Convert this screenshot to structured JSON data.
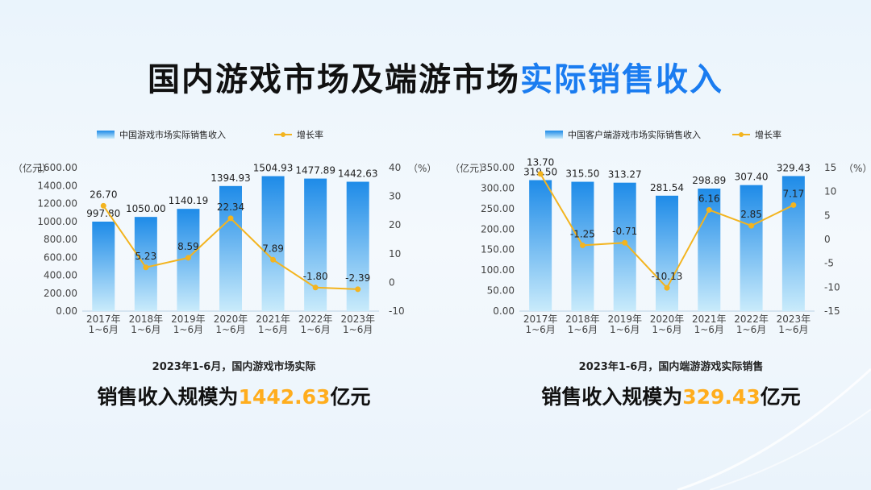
{
  "title": {
    "part1": "国内游戏市场及端游市场",
    "part2": "实际销售收入"
  },
  "colors": {
    "bar_top": "#1e8be8",
    "bar_bottom": "#c9ebfb",
    "line": "#f3b41f",
    "accent": "#1a7cf0",
    "highlight": "#ffad1d"
  },
  "chart_data": [
    {
      "type": "bar",
      "categories": [
        "2017年\n1~6月",
        "2018年\n1~6月",
        "2019年\n1~6月",
        "2020年\n1~6月",
        "2021年\n1~6月",
        "2022年\n1~6月",
        "2023年\n1~6月"
      ],
      "y_unit": "（亿元）",
      "y2_unit": "（%）",
      "ylim": [
        0,
        1600
      ],
      "yticks": [
        "0.00",
        "200.00",
        "400.00",
        "600.00",
        "800.00",
        "1000.00",
        "1200.00",
        "1400.00",
        "1600.00"
      ],
      "y2lim": [
        -10,
        40
      ],
      "y2ticks": [
        "-10",
        "0",
        "10",
        "20",
        "30",
        "40"
      ],
      "series": [
        {
          "name": "中国游戏市场实际销售收入",
          "type": "bar",
          "values": [
            997.8,
            1050.0,
            1140.19,
            1394.93,
            1504.93,
            1477.89,
            1442.63
          ],
          "labels": [
            "997.80",
            "1050.00",
            "1140.19",
            "1394.93",
            "1504.93",
            "1477.89",
            "1442.63"
          ]
        },
        {
          "name": "增长率",
          "type": "line",
          "axis": "right",
          "values": [
            26.7,
            5.23,
            8.59,
            22.34,
            7.89,
            -1.8,
            -2.39
          ],
          "labels": [
            "26.70",
            "5.23",
            "8.59",
            "22.34",
            "7.89",
            "-1.80",
            "-2.39"
          ]
        }
      ],
      "legend": "top",
      "grid": false
    },
    {
      "type": "bar",
      "categories": [
        "2017年\n1~6月",
        "2018年\n1~6月",
        "2019年\n1~6月",
        "2020年\n1~6月",
        "2021年\n1~6月",
        "2022年\n1~6月",
        "2023年\n1~6月"
      ],
      "y_unit": "（亿元）",
      "y2_unit": "（%）",
      "ylim": [
        0,
        350
      ],
      "yticks": [
        "0.00",
        "50.00",
        "100.00",
        "150.00",
        "200.00",
        "250.00",
        "300.00",
        "350.00"
      ],
      "y2lim": [
        -15,
        15
      ],
      "y2ticks": [
        "-15",
        "-10",
        "-5",
        "0",
        "5",
        "10",
        "15"
      ],
      "series": [
        {
          "name": "中国客户端游戏市场实际销售收入",
          "type": "bar",
          "values": [
            319.5,
            315.5,
            313.27,
            281.54,
            298.89,
            307.4,
            329.43
          ],
          "labels": [
            "319.50",
            "315.50",
            "313.27",
            "281.54",
            "298.89",
            "307.40",
            "329.43"
          ]
        },
        {
          "name": "增长率",
          "type": "line",
          "axis": "right",
          "values": [
            13.7,
            -1.25,
            -0.71,
            -10.13,
            6.16,
            2.85,
            7.17
          ],
          "labels": [
            "13.70",
            "-1.25",
            "-0.71",
            "-10.13",
            "6.16",
            "2.85",
            "7.17"
          ]
        }
      ],
      "legend": "top",
      "grid": false
    }
  ],
  "captions": [
    {
      "line1": "2023年1-6月，国内游戏市场实际",
      "line2_prefix": "销售收入规模为",
      "line2_value": "1442.63",
      "line2_suffix": "亿元"
    },
    {
      "line1": "2023年1-6月，国内端游游戏实际销售",
      "line2_prefix": "销售收入规模为",
      "line2_value": "329.43",
      "line2_suffix": "亿元"
    }
  ]
}
